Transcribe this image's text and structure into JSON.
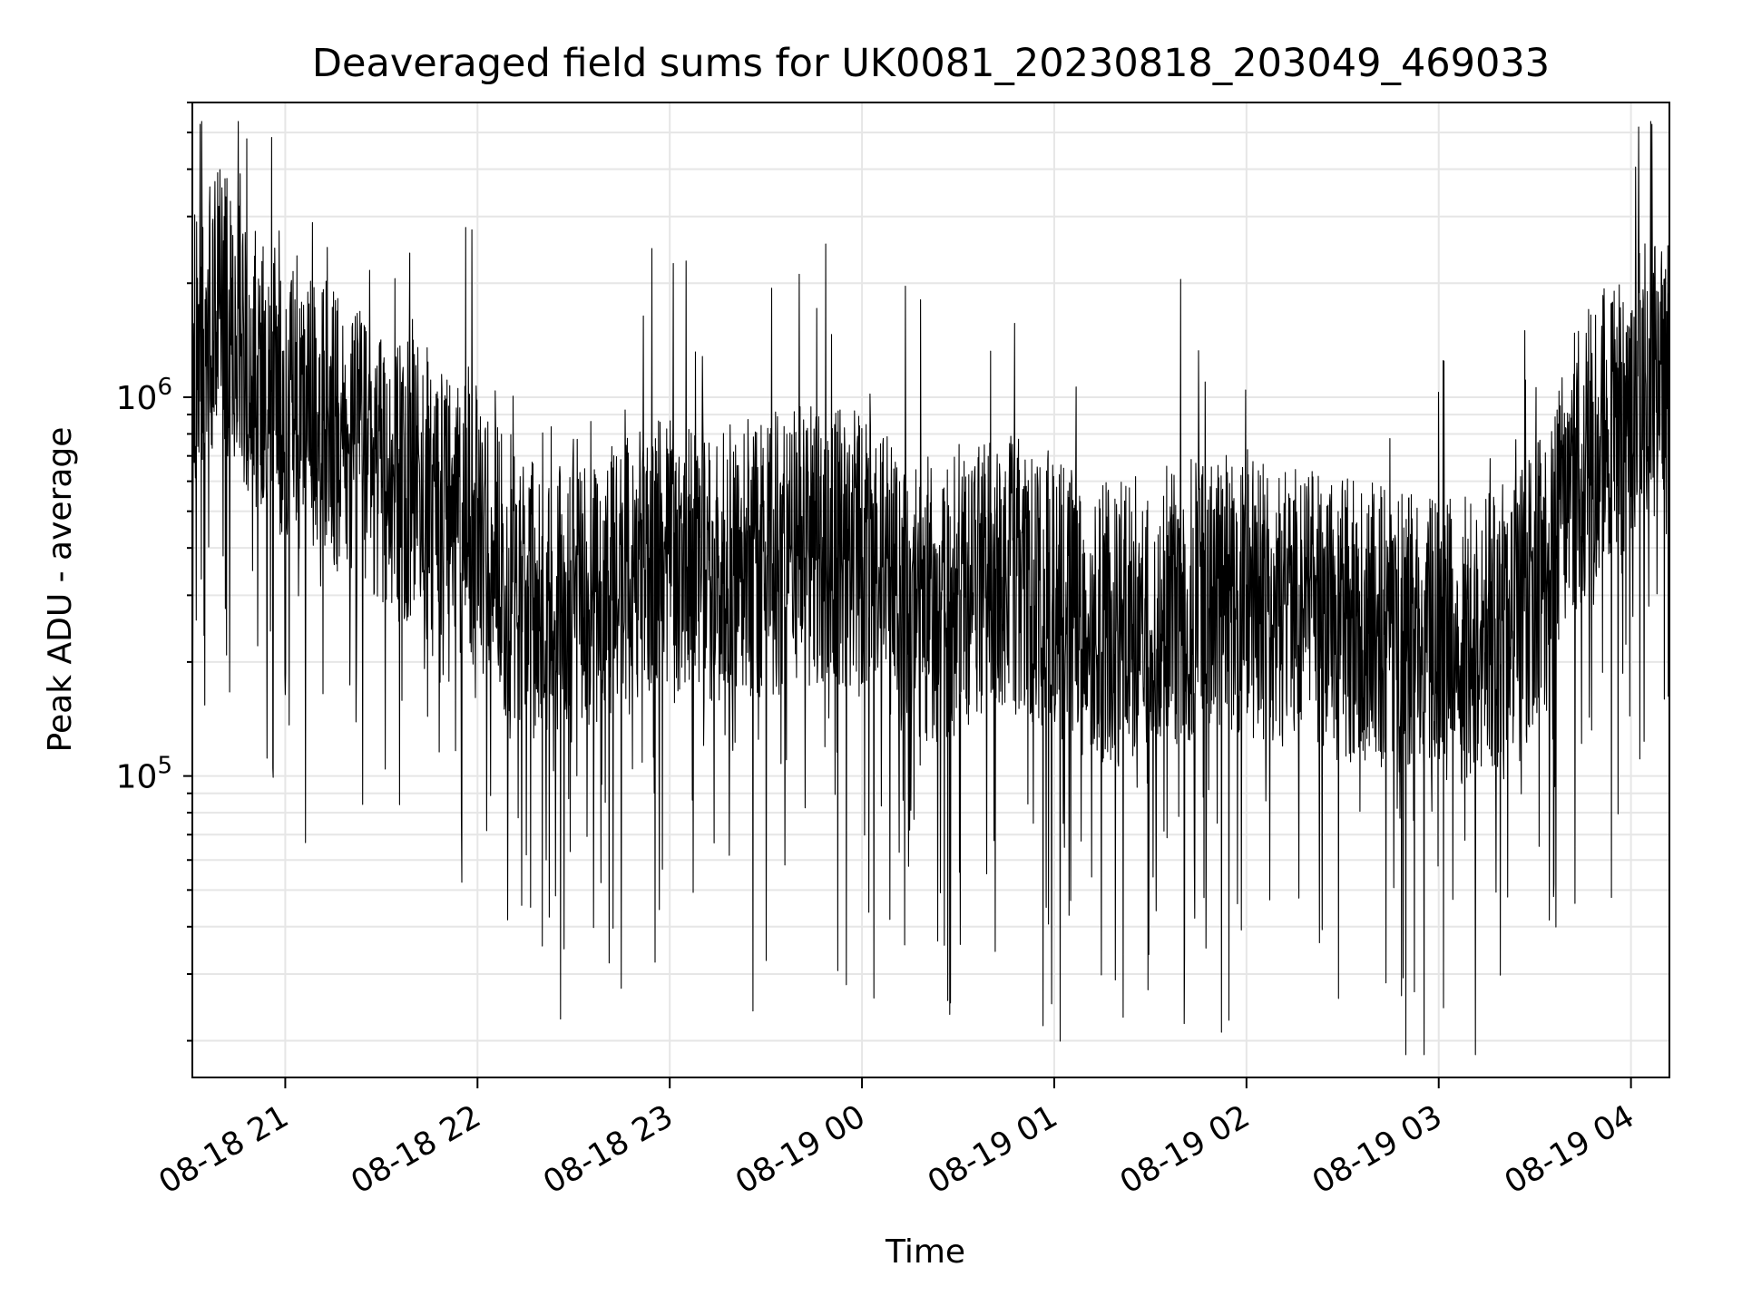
{
  "chart_data": {
    "type": "line",
    "title": "Deaveraged field sums for UK0081_20230818_203049_469033",
    "xlabel": "Time",
    "ylabel": "Peak ADU - average",
    "x_range": [
      "2023-08-18 20:31",
      "2023-08-19 04:12"
    ],
    "ylim": [
      16000,
      6000000
    ],
    "yscale": "log",
    "grid": true,
    "line_color": "#000000",
    "x_ticks": [
      {
        "t": "2023-08-18 21:00",
        "label": "08-18 21"
      },
      {
        "t": "2023-08-18 22:00",
        "label": "08-18 22"
      },
      {
        "t": "2023-08-18 23:00",
        "label": "08-18 23"
      },
      {
        "t": "2023-08-19 00:00",
        "label": "08-19 00"
      },
      {
        "t": "2023-08-19 01:00",
        "label": "08-19 01"
      },
      {
        "t": "2023-08-19 02:00",
        "label": "08-19 02"
      },
      {
        "t": "2023-08-19 03:00",
        "label": "08-19 03"
      },
      {
        "t": "2023-08-19 04:00",
        "label": "08-19 04"
      }
    ],
    "y_ticks": [
      {
        "value": 100000,
        "base": "10",
        "exp": "5"
      },
      {
        "value": 1000000,
        "base": "10",
        "exp": "6"
      }
    ],
    "series": [
      {
        "x": [
          "2023-08-18 20:31",
          "2023-08-18 20:36",
          "2023-08-18 20:40",
          "2023-08-18 20:45",
          "2023-08-18 20:50",
          "2023-08-18 20:55",
          "2023-08-18 21:00",
          "2023-08-18 21:10",
          "2023-08-18 21:20",
          "2023-08-18 21:30",
          "2023-08-18 21:40",
          "2023-08-18 21:50",
          "2023-08-18 22:00",
          "2023-08-18 22:10",
          "2023-08-18 22:20",
          "2023-08-18 22:30",
          "2023-08-18 22:40",
          "2023-08-18 22:50",
          "2023-08-18 23:00",
          "2023-08-18 23:10",
          "2023-08-18 23:20",
          "2023-08-18 23:30",
          "2023-08-18 23:40",
          "2023-08-18 23:50",
          "2023-08-19 00:00",
          "2023-08-19 00:10",
          "2023-08-19 00:20",
          "2023-08-19 00:30",
          "2023-08-19 00:40",
          "2023-08-19 00:50",
          "2023-08-19 01:00",
          "2023-08-19 01:10",
          "2023-08-19 01:20",
          "2023-08-19 01:30",
          "2023-08-19 01:40",
          "2023-08-19 01:50",
          "2023-08-19 02:00",
          "2023-08-19 02:10",
          "2023-08-19 02:20",
          "2023-08-19 02:30",
          "2023-08-19 02:40",
          "2023-08-19 02:50",
          "2023-08-19 03:00",
          "2023-08-19 03:10",
          "2023-08-19 03:20",
          "2023-08-19 03:30",
          "2023-08-19 03:40",
          "2023-08-19 03:50",
          "2023-08-19 04:00",
          "2023-08-19 04:05",
          "2023-08-19 04:12"
        ],
        "y": [
          1300000,
          1500000,
          1800000,
          1400000,
          1200000,
          1100000,
          1000000,
          900000,
          750000,
          650000,
          600000,
          550000,
          450000,
          320000,
          280000,
          300000,
          330000,
          350000,
          380000,
          370000,
          360000,
          380000,
          400000,
          420000,
          380000,
          320000,
          280000,
          300000,
          340000,
          330000,
          300000,
          260000,
          250000,
          270000,
          290000,
          300000,
          290000,
          280000,
          270000,
          260000,
          250000,
          240000,
          230000,
          230000,
          250000,
          300000,
          600000,
          800000,
          900000,
          1200000,
          1000000
        ]
      }
    ]
  }
}
